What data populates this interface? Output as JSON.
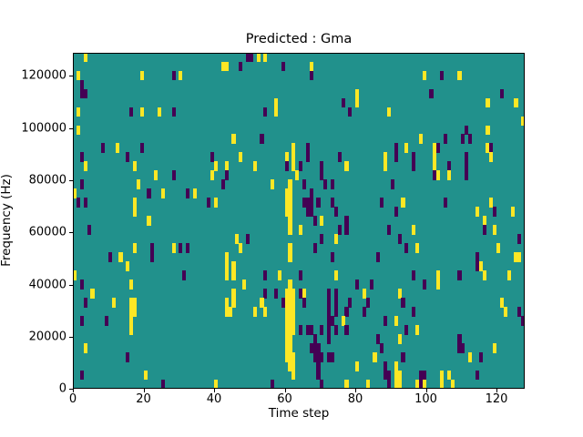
{
  "figure": {
    "background": "#ffffff"
  },
  "chart_data": {
    "type": "heatmap",
    "title": "Predicted : Gma",
    "xlabel": "Time step",
    "ylabel": "Frequency (Hz)",
    "x_ticks": [
      0,
      20,
      40,
      60,
      80,
      100,
      120
    ],
    "y_ticks": [
      0,
      20000,
      40000,
      60000,
      80000,
      100000,
      120000
    ],
    "xlim": [
      0,
      128
    ],
    "ylim": [
      0,
      129000
    ],
    "grid": {
      "cols": 128,
      "rows": 37
    },
    "legend": "none",
    "colors": {
      "background": "#21918c",
      "low": "#440154",
      "high": "#fde725"
    },
    "value_legend": {
      "y": "high (yellow)",
      "p": "low (dark purple)",
      "default": "mid (teal)"
    },
    "cells": [
      [
        3,
        0,
        "y"
      ],
      [
        1,
        2,
        "y"
      ],
      [
        2,
        3,
        "p"
      ],
      [
        2,
        4,
        "p"
      ],
      [
        3,
        4,
        "p"
      ],
      [
        19,
        2,
        "y"
      ],
      [
        28,
        2,
        "p"
      ],
      [
        30,
        2,
        "y"
      ],
      [
        42,
        1,
        "y"
      ],
      [
        1,
        6,
        "y"
      ],
      [
        16,
        6,
        "p"
      ],
      [
        19,
        6,
        "y"
      ],
      [
        24,
        6,
        "y"
      ],
      [
        28,
        6,
        "p"
      ],
      [
        1,
        8,
        "y"
      ],
      [
        8,
        10,
        "p"
      ],
      [
        12,
        10,
        "y"
      ],
      [
        19,
        10,
        "p"
      ],
      [
        2,
        11,
        "p"
      ],
      [
        39,
        11,
        "p"
      ],
      [
        40,
        12,
        "y"
      ],
      [
        15,
        11,
        "p"
      ],
      [
        17,
        12,
        "y"
      ],
      [
        49,
        0,
        "p"
      ],
      [
        50,
        0,
        "p"
      ],
      [
        52,
        0,
        "y"
      ],
      [
        54,
        0,
        "y"
      ],
      [
        43,
        1,
        "y"
      ],
      [
        47,
        1,
        "p"
      ],
      [
        59,
        1,
        "p"
      ],
      [
        67,
        1,
        "y"
      ],
      [
        67,
        2,
        "p"
      ],
      [
        76,
        5,
        "p"
      ],
      [
        80,
        4,
        "y"
      ],
      [
        80,
        5,
        "y"
      ],
      [
        78,
        6,
        "p"
      ],
      [
        57,
        5,
        "y"
      ],
      [
        57,
        6,
        "y"
      ],
      [
        54,
        6,
        "p"
      ],
      [
        45,
        9,
        "y"
      ],
      [
        53,
        9,
        "p"
      ],
      [
        47,
        11,
        "y"
      ],
      [
        60,
        11,
        "y"
      ],
      [
        62,
        10,
        "y"
      ],
      [
        62,
        11,
        "y"
      ],
      [
        62,
        12,
        "y"
      ],
      [
        66,
        10,
        "p"
      ],
      [
        66,
        11,
        "p"
      ],
      [
        75,
        11,
        "p"
      ],
      [
        70,
        12,
        "p"
      ],
      [
        99,
        2,
        "y"
      ],
      [
        104,
        2,
        "p"
      ],
      [
        109,
        2,
        "y"
      ],
      [
        101,
        4,
        "p"
      ],
      [
        117,
        5,
        "y"
      ],
      [
        121,
        4,
        "p"
      ],
      [
        125,
        5,
        "y"
      ],
      [
        89,
        6,
        "y"
      ],
      [
        127,
        7,
        "y"
      ],
      [
        111,
        8,
        "p"
      ],
      [
        117,
        8,
        "y"
      ],
      [
        110,
        9,
        "p"
      ],
      [
        105,
        9,
        "p"
      ],
      [
        98,
        9,
        "y"
      ],
      [
        112,
        9,
        "p"
      ],
      [
        88,
        11,
        "y"
      ],
      [
        88,
        12,
        "y"
      ],
      [
        91,
        10,
        "p"
      ],
      [
        91,
        11,
        "p"
      ],
      [
        94,
        10,
        "y"
      ],
      [
        96,
        11,
        "p"
      ],
      [
        96,
        12,
        "p"
      ],
      [
        102,
        10,
        "y"
      ],
      [
        102,
        11,
        "y"
      ],
      [
        102,
        12,
        "y"
      ],
      [
        103,
        10,
        "p"
      ],
      [
        106,
        12,
        "p"
      ],
      [
        111,
        11,
        "p"
      ],
      [
        111,
        12,
        "p"
      ],
      [
        117,
        10,
        "y"
      ],
      [
        118,
        10,
        "p"
      ],
      [
        118,
        11,
        "y"
      ],
      [
        3,
        12,
        "y"
      ],
      [
        2,
        14,
        "p"
      ],
      [
        0,
        15,
        "y"
      ],
      [
        1,
        16,
        "p"
      ],
      [
        3,
        16,
        "p"
      ],
      [
        4,
        19,
        "p"
      ],
      [
        18,
        14,
        "y"
      ],
      [
        23,
        13,
        "y"
      ],
      [
        28,
        13,
        "p"
      ],
      [
        17,
        16,
        "y"
      ],
      [
        17,
        17,
        "y"
      ],
      [
        21,
        15,
        "p"
      ],
      [
        25,
        15,
        "y"
      ],
      [
        21,
        18,
        "y"
      ],
      [
        32,
        15,
        "p"
      ],
      [
        34,
        15,
        "y"
      ],
      [
        38,
        16,
        "p"
      ],
      [
        40,
        16,
        "y"
      ],
      [
        39,
        13,
        "y"
      ],
      [
        42,
        14,
        "p"
      ],
      [
        17,
        21,
        "y"
      ],
      [
        22,
        21,
        "p"
      ],
      [
        22,
        22,
        "p"
      ],
      [
        28,
        21,
        "y"
      ],
      [
        30,
        21,
        "p"
      ],
      [
        32,
        21,
        "p"
      ],
      [
        10,
        22,
        "p"
      ],
      [
        13,
        22,
        "y"
      ],
      [
        15,
        23,
        "y"
      ],
      [
        31,
        24,
        "p"
      ],
      [
        0,
        24,
        "y"
      ],
      [
        43,
        12,
        "y"
      ],
      [
        51,
        12,
        "y"
      ],
      [
        60,
        12,
        "p"
      ],
      [
        64,
        12,
        "p"
      ],
      [
        70,
        12,
        "p"
      ],
      [
        77,
        12,
        "y"
      ],
      [
        43,
        13,
        "p"
      ],
      [
        56,
        14,
        "y"
      ],
      [
        63,
        13,
        "y"
      ],
      [
        65,
        14,
        "p"
      ],
      [
        65,
        16,
        "p"
      ],
      [
        67,
        15,
        "p"
      ],
      [
        66,
        16,
        "p"
      ],
      [
        67,
        16,
        "p"
      ],
      [
        66,
        17,
        "p"
      ],
      [
        67,
        17,
        "p"
      ],
      [
        69,
        16,
        "p"
      ],
      [
        70,
        13,
        "p"
      ],
      [
        71,
        14,
        "p"
      ],
      [
        73,
        14,
        "p"
      ],
      [
        73,
        16,
        "p"
      ],
      [
        74,
        17,
        "p"
      ],
      [
        70,
        18,
        "y"
      ],
      [
        68,
        18,
        "p"
      ],
      [
        77,
        18,
        "p"
      ],
      [
        77,
        19,
        "p"
      ],
      [
        75,
        19,
        "p"
      ],
      [
        64,
        19,
        "y"
      ],
      [
        70,
        20,
        "p"
      ],
      [
        74,
        20,
        "y"
      ],
      [
        68,
        21,
        "p"
      ],
      [
        73,
        22,
        "p"
      ],
      [
        46,
        20,
        "y"
      ],
      [
        49,
        20,
        "p"
      ],
      [
        47,
        21,
        "y"
      ],
      [
        43,
        22,
        "y"
      ],
      [
        43,
        23,
        "y"
      ],
      [
        43,
        24,
        "y"
      ],
      [
        45,
        23,
        "y"
      ],
      [
        45,
        24,
        "y"
      ],
      [
        54,
        24,
        "p"
      ],
      [
        58,
        24,
        "y"
      ],
      [
        64,
        24,
        "p"
      ],
      [
        74,
        24,
        "y"
      ],
      [
        61,
        14,
        "y"
      ],
      [
        61,
        15,
        "y"
      ],
      [
        61,
        16,
        "y"
      ],
      [
        61,
        17,
        "y"
      ],
      [
        61,
        18,
        "y"
      ],
      [
        61,
        19,
        "y"
      ],
      [
        60,
        15,
        "y"
      ],
      [
        60,
        16,
        "y"
      ],
      [
        60,
        17,
        "y"
      ],
      [
        61,
        21,
        "y"
      ],
      [
        61,
        22,
        "y"
      ],
      [
        102,
        13,
        "p"
      ],
      [
        103,
        13,
        "y"
      ],
      [
        106,
        13,
        "y"
      ],
      [
        111,
        13,
        "p"
      ],
      [
        90,
        14,
        "p"
      ],
      [
        87,
        16,
        "p"
      ],
      [
        93,
        16,
        "y"
      ],
      [
        91,
        17,
        "p"
      ],
      [
        89,
        19,
        "p"
      ],
      [
        92,
        20,
        "p"
      ],
      [
        94,
        21,
        "p"
      ],
      [
        96,
        19,
        "y"
      ],
      [
        97,
        21,
        "y"
      ],
      [
        86,
        22,
        "p"
      ],
      [
        105,
        16,
        "p"
      ],
      [
        114,
        17,
        "y"
      ],
      [
        118,
        16,
        "y"
      ],
      [
        119,
        17,
        "p"
      ],
      [
        116,
        18,
        "y"
      ],
      [
        124,
        17,
        "y"
      ],
      [
        116,
        19,
        "p"
      ],
      [
        119,
        19,
        "y"
      ],
      [
        126,
        20,
        "p"
      ],
      [
        120,
        21,
        "y"
      ],
      [
        114,
        22,
        "p"
      ],
      [
        114,
        23,
        "p"
      ],
      [
        125,
        22,
        "y"
      ],
      [
        126,
        22,
        "y"
      ],
      [
        115,
        23,
        "y"
      ],
      [
        96,
        24,
        "p"
      ],
      [
        109,
        24,
        "p"
      ],
      [
        103,
        24,
        "y"
      ],
      [
        116,
        24,
        "y"
      ],
      [
        123,
        24,
        "y"
      ],
      [
        2,
        25,
        "p"
      ],
      [
        5,
        26,
        "y"
      ],
      [
        3,
        27,
        "p"
      ],
      [
        11,
        27,
        "y"
      ],
      [
        16,
        25,
        "y"
      ],
      [
        16,
        27,
        "y"
      ],
      [
        17,
        27,
        "y"
      ],
      [
        16,
        28,
        "y"
      ],
      [
        17,
        28,
        "y"
      ],
      [
        16,
        29,
        "y"
      ],
      [
        16,
        30,
        "y"
      ],
      [
        2,
        29,
        "p"
      ],
      [
        9,
        29,
        "p"
      ],
      [
        3,
        32,
        "y"
      ],
      [
        15,
        33,
        "p"
      ],
      [
        2,
        35,
        "p"
      ],
      [
        20,
        35,
        "y"
      ],
      [
        25,
        36,
        "p"
      ],
      [
        40,
        36,
        "y"
      ],
      [
        48,
        25,
        "y"
      ],
      [
        45,
        26,
        "y"
      ],
      [
        45,
        27,
        "y"
      ],
      [
        43,
        27,
        "y"
      ],
      [
        43,
        28,
        "y"
      ],
      [
        44,
        28,
        "y"
      ],
      [
        54,
        26,
        "p"
      ],
      [
        53,
        27,
        "y"
      ],
      [
        51,
        28,
        "y"
      ],
      [
        54,
        28,
        "y"
      ],
      [
        57,
        26,
        "p"
      ],
      [
        59,
        27,
        "p"
      ],
      [
        61,
        25,
        "y"
      ],
      [
        60,
        26,
        "y"
      ],
      [
        61,
        26,
        "y"
      ],
      [
        62,
        26,
        "y"
      ],
      [
        60,
        27,
        "y"
      ],
      [
        61,
        27,
        "y"
      ],
      [
        62,
        27,
        "y"
      ],
      [
        60,
        28,
        "y"
      ],
      [
        61,
        28,
        "y"
      ],
      [
        62,
        28,
        "y"
      ],
      [
        60,
        29,
        "y"
      ],
      [
        61,
        29,
        "y"
      ],
      [
        62,
        29,
        "y"
      ],
      [
        60,
        30,
        "y"
      ],
      [
        61,
        30,
        "y"
      ],
      [
        62,
        30,
        "y"
      ],
      [
        60,
        31,
        "y"
      ],
      [
        61,
        31,
        "y"
      ],
      [
        60,
        32,
        "y"
      ],
      [
        61,
        32,
        "y"
      ],
      [
        60,
        33,
        "y"
      ],
      [
        61,
        33,
        "y"
      ],
      [
        61,
        34,
        "y"
      ],
      [
        62,
        33,
        "y"
      ],
      [
        62,
        34,
        "y"
      ],
      [
        62,
        35,
        "y"
      ],
      [
        64,
        26,
        "p"
      ],
      [
        65,
        26,
        "y"
      ],
      [
        65,
        27,
        "p"
      ],
      [
        64,
        30,
        "p"
      ],
      [
        66,
        30,
        "p"
      ],
      [
        67,
        30,
        "p"
      ],
      [
        68,
        31,
        "p"
      ],
      [
        70,
        30,
        "p"
      ],
      [
        72,
        26,
        "p"
      ],
      [
        72,
        27,
        "p"
      ],
      [
        72,
        28,
        "p"
      ],
      [
        72,
        29,
        "p"
      ],
      [
        72,
        30,
        "p"
      ],
      [
        72,
        31,
        "p"
      ],
      [
        74,
        26,
        "p"
      ],
      [
        74,
        27,
        "p"
      ],
      [
        74,
        28,
        "p"
      ],
      [
        73,
        29,
        "p"
      ],
      [
        74,
        30,
        "p"
      ],
      [
        67,
        32,
        "p"
      ],
      [
        68,
        32,
        "p"
      ],
      [
        69,
        32,
        "p"
      ],
      [
        68,
        33,
        "p"
      ],
      [
        69,
        33,
        "p"
      ],
      [
        70,
        33,
        "p"
      ],
      [
        69,
        34,
        "p"
      ],
      [
        69,
        35,
        "p"
      ],
      [
        72,
        33,
        "p"
      ],
      [
        73,
        33,
        "p"
      ],
      [
        77,
        28,
        "p"
      ],
      [
        76,
        29,
        "y"
      ],
      [
        77,
        30,
        "p"
      ],
      [
        85,
        33,
        "y"
      ],
      [
        82,
        28,
        "p"
      ],
      [
        83,
        27,
        "p"
      ],
      [
        82,
        26,
        "y"
      ],
      [
        80,
        25,
        "p"
      ],
      [
        84,
        25,
        "p"
      ],
      [
        78,
        27,
        "p"
      ],
      [
        80,
        34,
        "y"
      ],
      [
        56,
        36,
        "p"
      ],
      [
        70,
        36,
        "p"
      ],
      [
        77,
        36,
        "y"
      ],
      [
        83,
        36,
        "y"
      ],
      [
        99,
        25,
        "p"
      ],
      [
        103,
        25,
        "y"
      ],
      [
        92,
        26,
        "y"
      ],
      [
        93,
        27,
        "p"
      ],
      [
        96,
        28,
        "p"
      ],
      [
        88,
        29,
        "p"
      ],
      [
        91,
        29,
        "y"
      ],
      [
        94,
        30,
        "p"
      ],
      [
        97,
        30,
        "y"
      ],
      [
        92,
        31,
        "y"
      ],
      [
        86,
        31,
        "p"
      ],
      [
        87,
        32,
        "p"
      ],
      [
        93,
        33,
        "p"
      ],
      [
        88,
        34,
        "p"
      ],
      [
        88,
        35,
        "p"
      ],
      [
        89,
        35,
        "p"
      ],
      [
        89,
        36,
        "p"
      ],
      [
        91,
        34,
        "y"
      ],
      [
        91,
        35,
        "y"
      ],
      [
        92,
        35,
        "y"
      ],
      [
        91,
        36,
        "y"
      ],
      [
        92,
        36,
        "y"
      ],
      [
        98,
        35,
        "p"
      ],
      [
        99,
        35,
        "p"
      ],
      [
        98,
        36,
        "p"
      ],
      [
        97,
        36,
        "y"
      ],
      [
        99,
        36,
        "y"
      ],
      [
        104,
        35,
        "y"
      ],
      [
        104,
        36,
        "y"
      ],
      [
        106,
        35,
        "y"
      ],
      [
        107,
        36,
        "y"
      ],
      [
        109,
        31,
        "p"
      ],
      [
        109,
        32,
        "p"
      ],
      [
        110,
        32,
        "p"
      ],
      [
        112,
        33,
        "y"
      ],
      [
        115,
        33,
        "p"
      ],
      [
        114,
        35,
        "p"
      ],
      [
        119,
        32,
        "y"
      ],
      [
        121,
        27,
        "y"
      ],
      [
        122,
        28,
        "y"
      ],
      [
        126,
        28,
        "p"
      ],
      [
        127,
        29,
        "p"
      ]
    ]
  }
}
